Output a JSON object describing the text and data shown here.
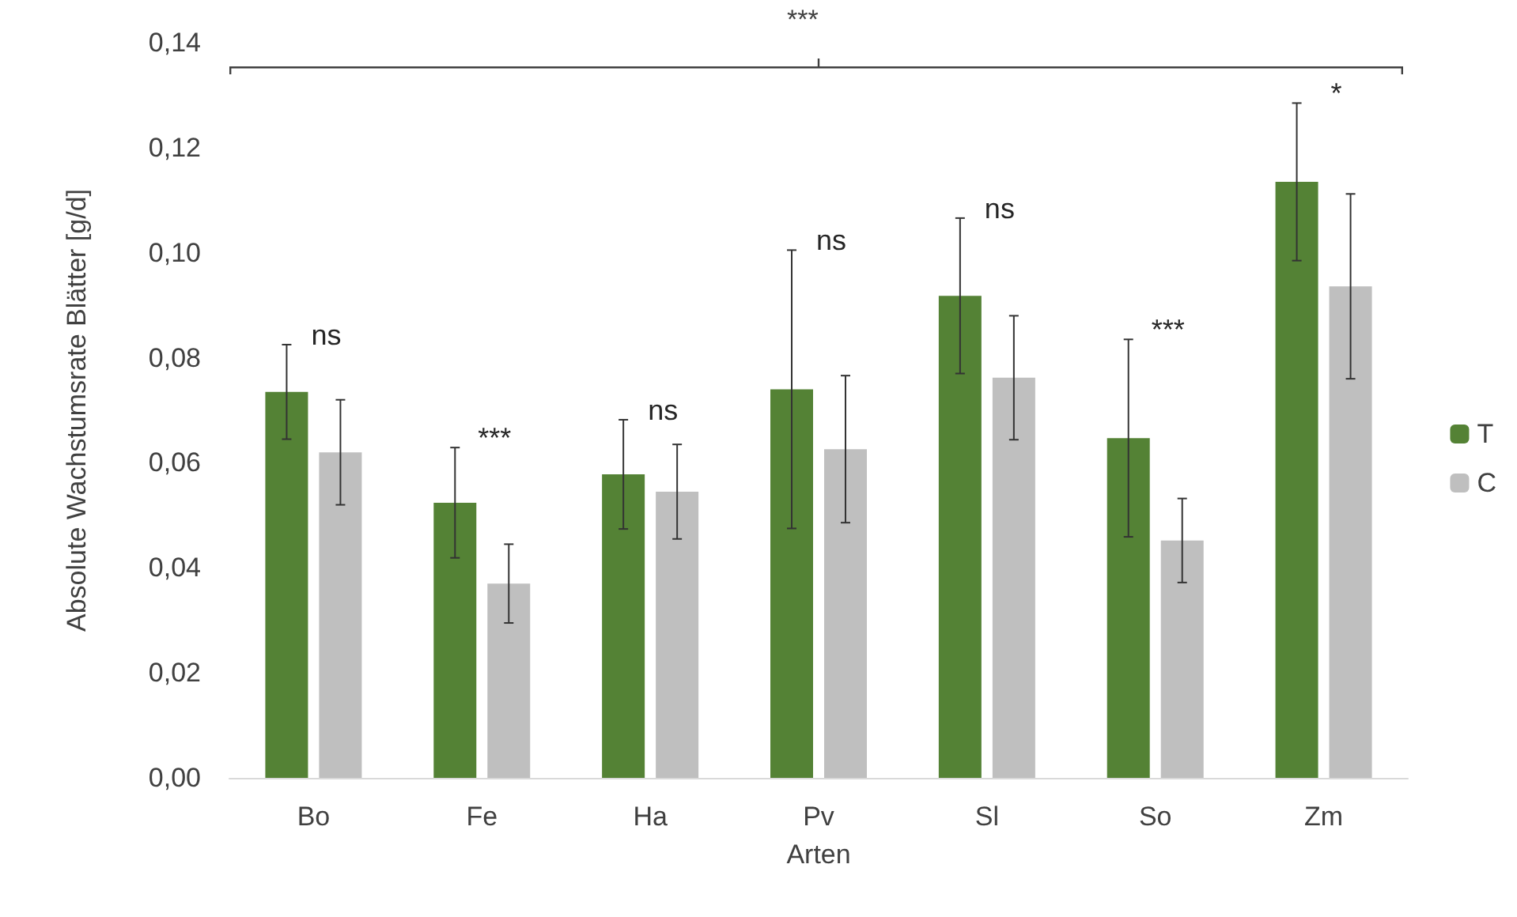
{
  "chart_data": {
    "type": "bar",
    "xlabel": "Arten",
    "ylabel": "Absolute Wachstumsrate Blätter [g/d]",
    "categories": [
      "Bo",
      "Fe",
      "Ha",
      "Pv",
      "Sl",
      "So",
      "Zm"
    ],
    "series": [
      {
        "name": "T",
        "color": "#548235",
        "values": [
          0.0735,
          0.0524,
          0.0578,
          0.074,
          0.0918,
          0.0647,
          0.1135
        ],
        "errors": [
          0.009,
          0.0105,
          0.0104,
          0.0265,
          0.0148,
          0.0188,
          0.015
        ]
      },
      {
        "name": "C",
        "color": "#bfbfbf",
        "values": [
          0.062,
          0.037,
          0.0545,
          0.0626,
          0.0762,
          0.0452,
          0.0936
        ],
        "errors": [
          0.01,
          0.0075,
          0.009,
          0.014,
          0.0118,
          0.008,
          0.0176
        ]
      }
    ],
    "ylim": [
      0,
      0.14
    ],
    "yticks": [
      {
        "value": 0,
        "label": "0,00"
      },
      {
        "value": 0.02,
        "label": "0,02"
      },
      {
        "value": 0.04,
        "label": "0,04"
      },
      {
        "value": 0.06,
        "label": "0,06"
      },
      {
        "value": 0.08,
        "label": "0,08"
      },
      {
        "value": 0.1,
        "label": "0,10"
      },
      {
        "value": 0.12,
        "label": "0,12"
      },
      {
        "value": 0.14,
        "label": "0,14"
      }
    ],
    "grid": false,
    "legend": "right",
    "annotations": [
      "***",
      "ns",
      "***",
      "ns",
      "ns",
      "ns",
      "***",
      "*"
    ]
  }
}
